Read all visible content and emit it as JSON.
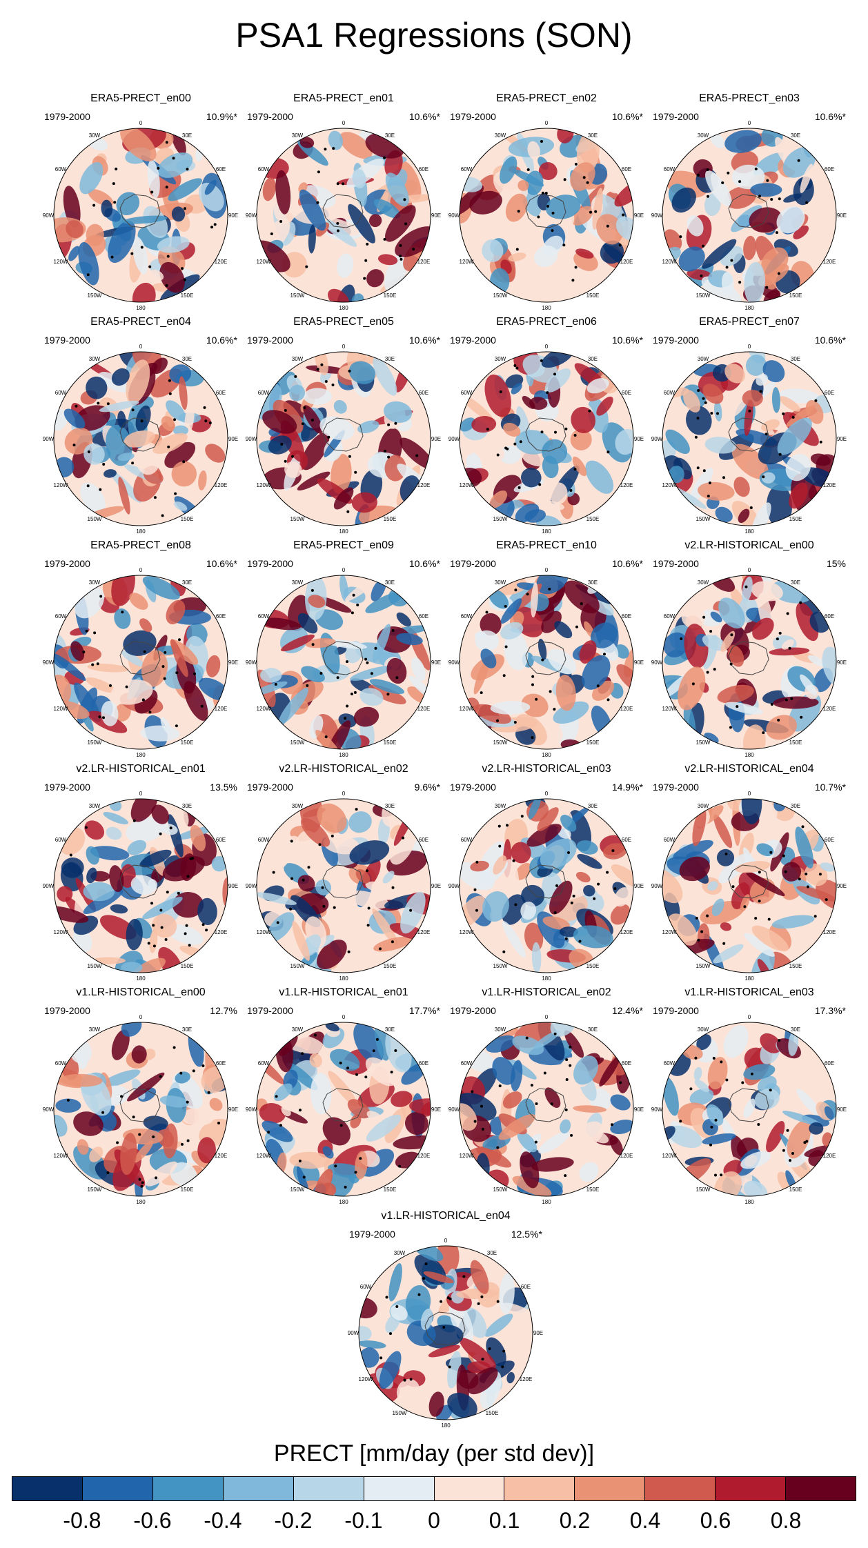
{
  "title": "PSA1 Regressions (SON)",
  "chart_data": {
    "type": "polar_map_panels",
    "title": "PSA1 Regressions (SON)",
    "variable_label": "PRECT [mm/day (per std dev)]",
    "period": "1979-2000",
    "longitude_labels": [
      "0",
      "30E",
      "60E",
      "90E",
      "120E",
      "150E",
      "180",
      "150W",
      "120W",
      "90W",
      "60W",
      "30W"
    ],
    "panels": [
      {
        "name": "ERA5-PRECT_en00",
        "period": "1979-2000",
        "pct": "10.9%*"
      },
      {
        "name": "ERA5-PRECT_en01",
        "period": "1979-2000",
        "pct": "10.6%*"
      },
      {
        "name": "ERA5-PRECT_en02",
        "period": "1979-2000",
        "pct": "10.6%*"
      },
      {
        "name": "ERA5-PRECT_en03",
        "period": "1979-2000",
        "pct": "10.6%*"
      },
      {
        "name": "ERA5-PRECT_en04",
        "period": "1979-2000",
        "pct": "10.6%*"
      },
      {
        "name": "ERA5-PRECT_en05",
        "period": "1979-2000",
        "pct": "10.6%*"
      },
      {
        "name": "ERA5-PRECT_en06",
        "period": "1979-2000",
        "pct": "10.6%*"
      },
      {
        "name": "ERA5-PRECT_en07",
        "period": "1979-2000",
        "pct": "10.6%*"
      },
      {
        "name": "ERA5-PRECT_en08",
        "period": "1979-2000",
        "pct": "10.6%*"
      },
      {
        "name": "ERA5-PRECT_en09",
        "period": "1979-2000",
        "pct": "10.6%*"
      },
      {
        "name": "ERA5-PRECT_en10",
        "period": "1979-2000",
        "pct": "10.6%*"
      },
      {
        "name": "v2.LR-HISTORICAL_en00",
        "period": "1979-2000",
        "pct": "15%"
      },
      {
        "name": "v2.LR-HISTORICAL_en01",
        "period": "1979-2000",
        "pct": "13.5%"
      },
      {
        "name": "v2.LR-HISTORICAL_en02",
        "period": "1979-2000",
        "pct": "9.6%*"
      },
      {
        "name": "v2.LR-HISTORICAL_en03",
        "period": "1979-2000",
        "pct": "14.9%*"
      },
      {
        "name": "v2.LR-HISTORICAL_en04",
        "period": "1979-2000",
        "pct": "10.7%*"
      },
      {
        "name": "v1.LR-HISTORICAL_en00",
        "period": "1979-2000",
        "pct": "12.7%"
      },
      {
        "name": "v1.LR-HISTORICAL_en01",
        "period": "1979-2000",
        "pct": "17.7%*"
      },
      {
        "name": "v1.LR-HISTORICAL_en02",
        "period": "1979-2000",
        "pct": "12.4%*"
      },
      {
        "name": "v1.LR-HISTORICAL_en03",
        "period": "1979-2000",
        "pct": "17.3%*"
      },
      {
        "name": "v1.LR-HISTORICAL_en04",
        "period": "1979-2000",
        "pct": "12.5%*"
      }
    ],
    "colorbar": {
      "levels": [
        "-0.8",
        "-0.6",
        "-0.4",
        "-0.2",
        "-0.1",
        "0",
        "0.1",
        "0.2",
        "0.4",
        "0.6",
        "0.8"
      ],
      "colors": [
        "#08306b",
        "#2166ac",
        "#4393c3",
        "#7fb8da",
        "#b7d6e8",
        "#e4edf3",
        "#fbe3d8",
        "#f7bfa6",
        "#ea9274",
        "#d05a4d",
        "#b01c2e",
        "#67001f"
      ]
    }
  }
}
